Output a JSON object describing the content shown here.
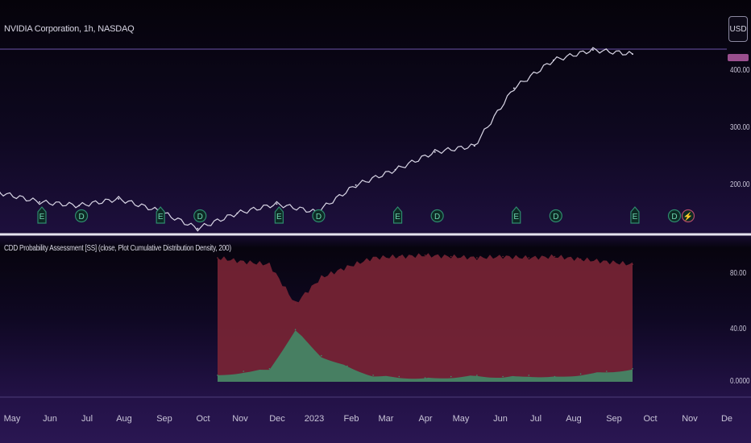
{
  "chart_title": "NVIDIA Corporation, 1h, NASDAQ",
  "currency_label": "USD",
  "indicator_title": "CDD Probability Assessment [SS] (close, Plot Cumulative Distribution Density, 200)",
  "colors": {
    "price_line": "#d9d6e6",
    "upper_fill": "#7a2535",
    "lower_fill": "#3f8f6a",
    "mid_fill": "#5a9ab0",
    "separator": "#e6e4ef",
    "earnings": "#2e8a6e",
    "dividend": "#2e8a6e",
    "split": "#b04a6a"
  },
  "chart_data": [
    {
      "type": "line",
      "title": "NVIDIA Corporation, 1h, NASDAQ",
      "xlabel": "",
      "ylabel": "",
      "y_ticks": [
        "400.00",
        "300.00",
        "200.00"
      ],
      "x_ticks": [
        "May",
        "Jun",
        "Jul",
        "Aug",
        "Sep",
        "Oct",
        "Nov",
        "Dec",
        "2023",
        "Feb",
        "Mar",
        "Apr",
        "May",
        "Jun",
        "Jul",
        "Aug",
        "Sep",
        "Oct",
        "Nov",
        "De"
      ],
      "x": [
        "May 2022",
        "Jun 2022",
        "Jul 2022",
        "Aug 2022",
        "Sep 2022",
        "Oct 2022",
        "Nov 2022",
        "Dec 2022",
        "Jan 2023",
        "Feb 2023",
        "Mar 2023",
        "Apr 2023",
        "May 2023",
        "Jun 2023",
        "Jul 2023",
        "Aug 2023",
        "Sep 2023"
      ],
      "series": [
        {
          "name": "",
          "values": [
            190,
            172,
            165,
            178,
            155,
            120,
            150,
            168,
            152,
            205,
            235,
            270,
            282,
            395,
            450,
            470,
            462
          ]
        }
      ],
      "ylim": [
        110,
        470
      ],
      "event_markers": [
        {
          "label": "E",
          "x": "May 2022"
        },
        {
          "label": "D",
          "x": "Jun 2022"
        },
        {
          "label": "E",
          "x": "Aug 2022"
        },
        {
          "label": "D",
          "x": "Sep 2022"
        },
        {
          "label": "E",
          "x": "Nov 2022"
        },
        {
          "label": "D",
          "x": "Dec 2022"
        },
        {
          "label": "E",
          "x": "Feb 2023"
        },
        {
          "label": "D",
          "x": "Mar 2023"
        },
        {
          "label": "E",
          "x": "May 2023"
        },
        {
          "label": "D",
          "x": "Jun 2023"
        },
        {
          "label": "E",
          "x": "Aug 2023"
        },
        {
          "label": "D",
          "x": "Sep 2023"
        },
        {
          "label": "⚡",
          "x": "Sep 2023"
        }
      ]
    },
    {
      "type": "area",
      "title": "CDD Probability Assessment [SS] (close, Plot Cumulative Distribution Density, 200)",
      "y_ticks": [
        "80.00",
        "40.00",
        "0.0000"
      ],
      "ylim": [
        0,
        100
      ],
      "series": [
        {
          "name": "",
          "values": [
            95,
            92,
            90,
            60,
            80,
            88,
            95,
            96,
            97,
            96,
            95,
            96,
            95,
            96,
            94,
            92,
            90
          ]
        },
        {
          "name": "",
          "values": [
            5,
            8,
            10,
            40,
            20,
            12,
            5,
            4,
            3,
            4,
            5,
            4,
            5,
            4,
            6,
            8,
            10
          ]
        }
      ]
    }
  ]
}
